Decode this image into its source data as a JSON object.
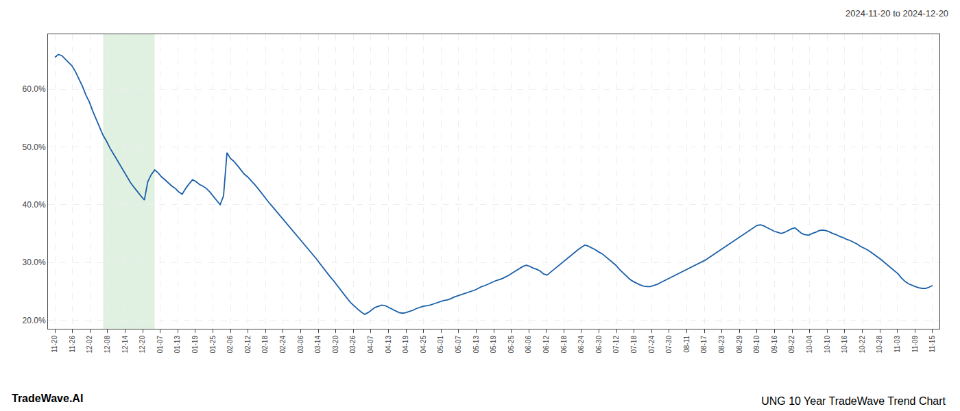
{
  "chart_data": {
    "type": "line",
    "title": "UNG 10 Year TradeWave Trend Chart",
    "subtitle": "2024-11-20 to 2024-12-20",
    "annotations": [
      "TradeWave.AI"
    ],
    "color": "#1a5fa8",
    "grid": true,
    "shade": {
      "x": [
        14,
        29
      ],
      "color": "#c8e6c9"
    },
    "xlim": [
      -2,
      257
    ],
    "xticks": [
      {
        "value": 0,
        "label": "11-20"
      },
      {
        "value": 5.1,
        "label": "11-26"
      },
      {
        "value": 10.2,
        "label": "12-02"
      },
      {
        "value": 15.3,
        "label": "12-08"
      },
      {
        "value": 20.4,
        "label": "12-14"
      },
      {
        "value": 25.5,
        "label": "12-20"
      },
      {
        "value": 30.6,
        "label": "01-07"
      },
      {
        "value": 35.7,
        "label": "01-13"
      },
      {
        "value": 40.8,
        "label": "01-19"
      },
      {
        "value": 45.9,
        "label": "01-25"
      },
      {
        "value": 51,
        "label": "02-06"
      },
      {
        "value": 56.1,
        "label": "02-12"
      },
      {
        "value": 61.2,
        "label": "02-18"
      },
      {
        "value": 66.3,
        "label": "02-24"
      },
      {
        "value": 71.4,
        "label": "03-06"
      },
      {
        "value": 76.5,
        "label": "03-14"
      },
      {
        "value": 81.6,
        "label": "03-20"
      },
      {
        "value": 86.7,
        "label": "03-26"
      },
      {
        "value": 91.8,
        "label": "04-07"
      },
      {
        "value": 96.9,
        "label": "04-13"
      },
      {
        "value": 102,
        "label": "04-19"
      },
      {
        "value": 107.1,
        "label": "04-25"
      },
      {
        "value": 112.2,
        "label": "05-01"
      },
      {
        "value": 117.3,
        "label": "05-07"
      },
      {
        "value": 122.4,
        "label": "05-13"
      },
      {
        "value": 127.5,
        "label": "05-19"
      },
      {
        "value": 132.6,
        "label": "05-25"
      },
      {
        "value": 137.7,
        "label": "06-06"
      },
      {
        "value": 142.8,
        "label": "06-12"
      },
      {
        "value": 147.9,
        "label": "06-18"
      },
      {
        "value": 153,
        "label": "06-24"
      },
      {
        "value": 158.1,
        "label": "06-30"
      },
      {
        "value": 163.2,
        "label": "07-12"
      },
      {
        "value": 168.3,
        "label": "07-18"
      },
      {
        "value": 173.4,
        "label": "07-24"
      },
      {
        "value": 178.5,
        "label": "07-30"
      },
      {
        "value": 183.6,
        "label": "08-11"
      },
      {
        "value": 188.7,
        "label": "08-17"
      },
      {
        "value": 193.8,
        "label": "08-23"
      },
      {
        "value": 198.9,
        "label": "08-29"
      },
      {
        "value": 204,
        "label": "09-10"
      },
      {
        "value": 209.1,
        "label": "09-16"
      },
      {
        "value": 214.2,
        "label": "09-22"
      },
      {
        "value": 219.3,
        "label": "10-04"
      },
      {
        "value": 224.4,
        "label": "10-10"
      },
      {
        "value": 229.5,
        "label": "10-16"
      },
      {
        "value": 234.6,
        "label": "10-22"
      },
      {
        "value": 239.7,
        "label": "10-28"
      },
      {
        "value": 244.8,
        "label": "11-03"
      },
      {
        "value": 249.9,
        "label": "11-09"
      },
      {
        "value": 255,
        "label": "11-15"
      }
    ],
    "ylim": [
      0.185,
      0.695
    ],
    "yticks": [
      {
        "value": 0.2,
        "label": "20.0%"
      },
      {
        "value": 0.3,
        "label": "30.0%"
      },
      {
        "value": 0.4,
        "label": "40.0%"
      },
      {
        "value": 0.5,
        "label": "50.0%"
      },
      {
        "value": 0.6,
        "label": "60.0%"
      }
    ],
    "x": [
      0,
      1,
      2,
      3,
      4,
      5,
      6,
      7,
      8,
      9,
      10,
      11,
      12,
      13,
      14,
      15,
      16,
      17,
      18,
      19,
      20,
      21,
      22,
      23,
      24,
      25,
      26,
      27,
      28,
      29,
      30,
      31,
      32,
      33,
      34,
      35,
      36,
      37,
      38,
      39,
      40,
      41,
      42,
      43,
      44,
      45,
      46,
      47,
      48,
      49,
      50,
      51,
      52,
      53,
      54,
      55,
      56,
      57,
      58,
      59,
      60,
      61,
      62,
      63,
      64,
      65,
      66,
      67,
      68,
      69,
      70,
      71,
      72,
      73,
      74,
      75,
      76,
      77,
      78,
      79,
      80,
      81,
      82,
      83,
      84,
      85,
      86,
      87,
      88,
      89,
      90,
      91,
      92,
      93,
      94,
      95,
      96,
      97,
      98,
      99,
      100,
      101,
      102,
      103,
      104,
      105,
      106,
      107,
      108,
      109,
      110,
      111,
      112,
      113,
      114,
      115,
      116,
      117,
      118,
      119,
      120,
      121,
      122,
      123,
      124,
      125,
      126,
      127,
      128,
      129,
      130,
      131,
      132,
      133,
      134,
      135,
      136,
      137,
      138,
      139,
      140,
      141,
      142,
      143,
      144,
      145,
      146,
      147,
      148,
      149,
      150,
      151,
      152,
      153,
      154,
      155,
      156,
      157,
      158,
      159,
      160,
      161,
      162,
      163,
      164,
      165,
      166,
      167,
      168,
      169,
      170,
      171,
      172,
      173,
      174,
      175,
      176,
      177,
      178,
      179,
      180,
      181,
      182,
      183,
      184,
      185,
      186,
      187,
      188,
      189,
      190,
      191,
      192,
      193,
      194,
      195,
      196,
      197,
      198,
      199,
      200,
      201,
      202,
      203,
      204,
      205,
      206,
      207,
      208,
      209,
      210,
      211,
      212,
      213,
      214,
      215,
      216,
      217,
      218,
      219,
      220,
      221,
      222,
      223,
      224,
      225,
      226,
      227,
      228,
      229,
      230,
      231,
      232,
      233,
      234,
      235,
      236,
      237,
      238,
      239,
      240,
      241,
      242,
      243,
      244,
      245,
      246,
      247,
      248,
      249,
      250,
      251,
      252,
      253,
      254,
      255
    ],
    "values": [
      0.655,
      0.66,
      0.658,
      0.652,
      0.645,
      0.64,
      0.63,
      0.618,
      0.605,
      0.59,
      0.578,
      0.562,
      0.548,
      0.535,
      0.52,
      0.51,
      0.498,
      0.488,
      0.478,
      0.468,
      0.458,
      0.448,
      0.438,
      0.43,
      0.422,
      0.415,
      0.408,
      0.44,
      0.452,
      0.46,
      0.455,
      0.448,
      0.443,
      0.437,
      0.432,
      0.428,
      0.422,
      0.418,
      0.428,
      0.436,
      0.443,
      0.44,
      0.435,
      0.432,
      0.428,
      0.422,
      0.415,
      0.408,
      0.4,
      0.415,
      0.49,
      0.48,
      0.475,
      0.468,
      0.46,
      0.453,
      0.448,
      0.442,
      0.435,
      0.428,
      0.42,
      0.412,
      0.405,
      0.398,
      0.391,
      0.384,
      0.377,
      0.37,
      0.363,
      0.356,
      0.349,
      0.342,
      0.335,
      0.328,
      0.32,
      0.313,
      0.306,
      0.298,
      0.29,
      0.283,
      0.275,
      0.268,
      0.26,
      0.252,
      0.244,
      0.237,
      0.23,
      0.224,
      0.219,
      0.214,
      0.21,
      0.213,
      0.218,
      0.222,
      0.224,
      0.226,
      0.225,
      0.222,
      0.219,
      0.216,
      0.213,
      0.212,
      0.213,
      0.215,
      0.217,
      0.22,
      0.222,
      0.224,
      0.225,
      0.226,
      0.228,
      0.23,
      0.232,
      0.234,
      0.235,
      0.237,
      0.24,
      0.242,
      0.244,
      0.246,
      0.248,
      0.25,
      0.252,
      0.255,
      0.258,
      0.26,
      0.263,
      0.265,
      0.268,
      0.27,
      0.272,
      0.275,
      0.278,
      0.282,
      0.286,
      0.29,
      0.293,
      0.295,
      0.293,
      0.29,
      0.288,
      0.285,
      0.28,
      0.278,
      0.283,
      0.288,
      0.293,
      0.298,
      0.303,
      0.308,
      0.313,
      0.318,
      0.322,
      0.326,
      0.33,
      0.328,
      0.325,
      0.322,
      0.318,
      0.315,
      0.31,
      0.305,
      0.3,
      0.295,
      0.288,
      0.282,
      0.276,
      0.271,
      0.267,
      0.264,
      0.261,
      0.259,
      0.258,
      0.258,
      0.26,
      0.262,
      0.265,
      0.268,
      0.271,
      0.274,
      0.277,
      0.28,
      0.283,
      0.286,
      0.289,
      0.292,
      0.295,
      0.298,
      0.301,
      0.304,
      0.308,
      0.312,
      0.316,
      0.32,
      0.324,
      0.328,
      0.332,
      0.336,
      0.34,
      0.344,
      0.348,
      0.352,
      0.356,
      0.36,
      0.364,
      0.365,
      0.363,
      0.36,
      0.357,
      0.354,
      0.352,
      0.35,
      0.352,
      0.355,
      0.358,
      0.36,
      0.355,
      0.35,
      0.348,
      0.347,
      0.35,
      0.352,
      0.355,
      0.356,
      0.355,
      0.353,
      0.35,
      0.348,
      0.345,
      0.343,
      0.34,
      0.338,
      0.335,
      0.332,
      0.328,
      0.325,
      0.322,
      0.318,
      0.314,
      0.31,
      0.305,
      0.3,
      0.295,
      0.29,
      0.285,
      0.28,
      0.273,
      0.267,
      0.263,
      0.26,
      0.258,
      0.256,
      0.255,
      0.255,
      0.257,
      0.26
    ]
  }
}
